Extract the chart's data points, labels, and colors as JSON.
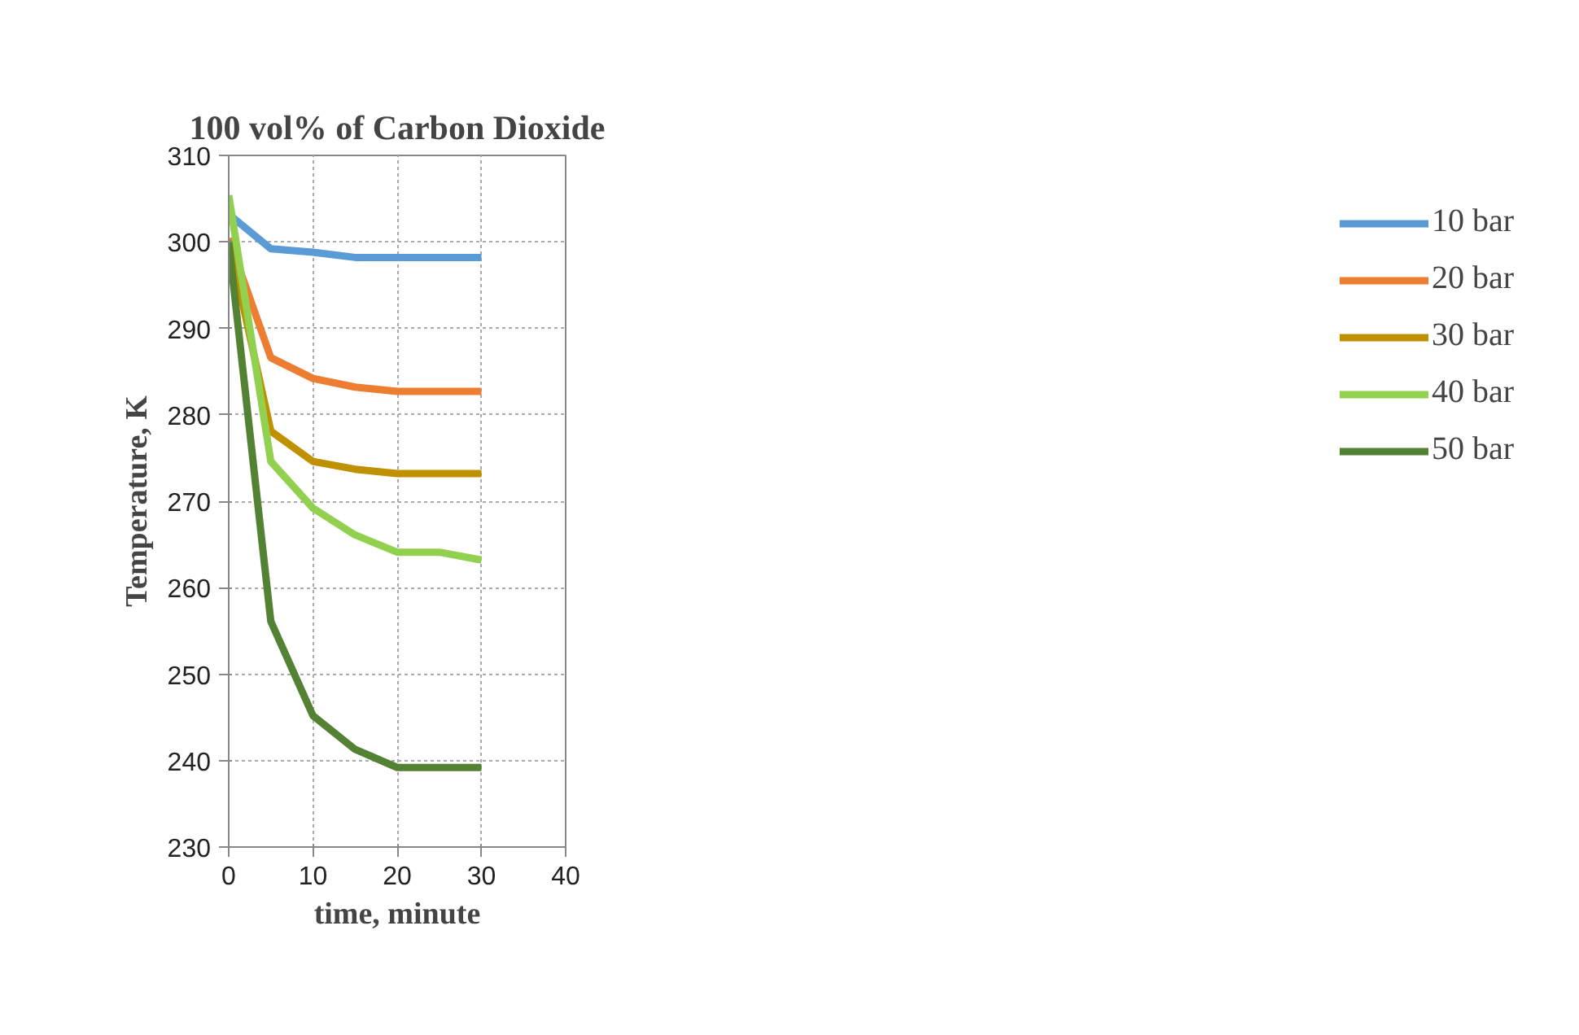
{
  "chart_data": {
    "type": "line",
    "title": "100 vol% of Carbon Dioxide",
    "xlabel": "time, minute",
    "ylabel": "Temperature, K",
    "x": [
      0,
      5,
      10,
      15,
      20,
      25,
      30
    ],
    "series": [
      {
        "name": "10 bar",
        "color": "#5b9bd5",
        "values": [
          303.2,
          299.2,
          298.8,
          298.2,
          298.2,
          298.2,
          298.2
        ]
      },
      {
        "name": "20 bar",
        "color": "#ed7d31",
        "values": [
          300.4,
          286.6,
          284.2,
          283.2,
          282.7,
          282.7,
          282.7
        ]
      },
      {
        "name": "30 bar",
        "color": "#bf9000",
        "values": [
          300.2,
          278.1,
          274.6,
          273.7,
          273.2,
          273.2,
          273.2
        ]
      },
      {
        "name": "40 bar",
        "color": "#92d050",
        "values": [
          305.4,
          274.6,
          269.2,
          266.1,
          264.1,
          264.1,
          263.2
        ]
      },
      {
        "name": "50 bar",
        "color": "#548235",
        "values": [
          300.0,
          256.1,
          245.2,
          241.3,
          239.2,
          239.2,
          239.2
        ]
      }
    ],
    "xlim": [
      0,
      40
    ],
    "xticks": [
      0,
      10,
      20,
      30,
      40
    ],
    "ylim": [
      230,
      310
    ],
    "yticks": [
      230,
      240,
      250,
      260,
      270,
      280,
      290,
      300,
      310
    ],
    "grid": true,
    "legend": "right",
    "line_style": "solid"
  }
}
